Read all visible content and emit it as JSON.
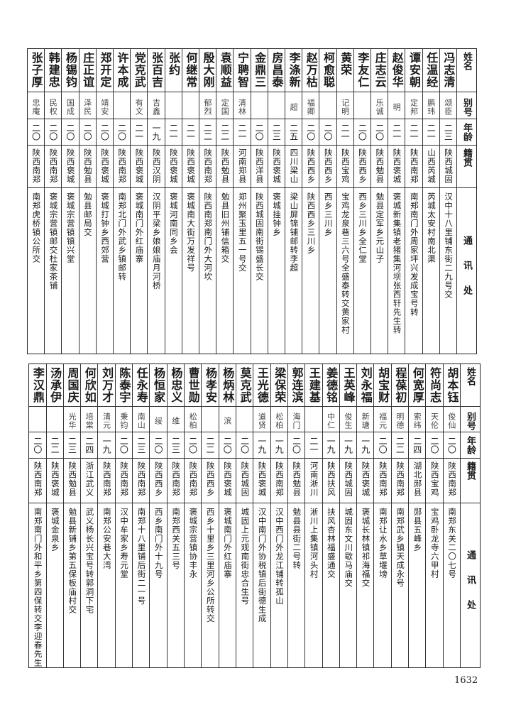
{
  "headers": {
    "name": "姓名",
    "alias": "别号",
    "age": "年龄",
    "native": "籍贯",
    "address": "通讯处"
  },
  "top_table": [
    {
      "name": "冯志清",
      "alias": "颂臣",
      "age": "二三",
      "native": "陕西城固",
      "address": "汉中十八里铺东街二九号交"
    },
    {
      "name": "任温经",
      "alias": "鹏玮",
      "age": "二一",
      "native": "山西芮城",
      "address": "芮城太安村南北渠"
    },
    {
      "name": "谭安朝",
      "alias": "定邦",
      "age": "二一",
      "native": "陕西南郑",
      "address": "南郑南门外周家坪兴发成宝号转"
    },
    {
      "name": "赵俊华",
      "alias": "明",
      "age": "二一",
      "native": "陕西褒城",
      "address": "褒城新集镇老猪集河坝张西轩先生转"
    },
    {
      "name": "庄志云",
      "alias": "乐诚",
      "age": "二〇",
      "native": "陕西勉县",
      "address": "勉县定军乡元山子"
    },
    {
      "name": "李友仁",
      "alias": "",
      "age": "二〇",
      "native": "陕西西乡",
      "address": "西乡三川乡全仁堂"
    },
    {
      "name": "黄荣",
      "alias": "记明",
      "age": "二一",
      "native": "陕西宝鸡",
      "address": "宝鸡龙泉巷三六号全盛泰转交黄家村"
    },
    {
      "name": "柯愈聪",
      "alias": "",
      "age": "二〇",
      "native": "陕西西乡",
      "address": "西乡三川乡"
    },
    {
      "name": "赵万枯",
      "alias": "福卿",
      "age": "二〇",
      "native": "陕西西乡",
      "address": "陕西西乡三川乡"
    },
    {
      "name": "李涤新",
      "alias": "超",
      "age": "二五",
      "native": "四川梁山",
      "address": "梁山屏锦铺邮转李超"
    },
    {
      "name": "房昌泰",
      "alias": "",
      "age": "二三",
      "native": "陕西褒城",
      "address": "褒城挂钟乡"
    },
    {
      "name": "金鼎三",
      "alias": "",
      "age": "二〇",
      "native": "陕西洋县",
      "address": "陕西城固南街锡盛长交"
    },
    {
      "name": "宁聘智",
      "alias": "清林",
      "age": "二一",
      "native": "河南郑县",
      "address": "郑州聚玉里五一号交"
    },
    {
      "name": "袁顺益",
      "alias": "定国",
      "age": "二二",
      "native": "陕西勉县",
      "address": "勉县旧州铺信箱交"
    },
    {
      "name": "殷大刚",
      "alias": "郁烈",
      "age": "二二",
      "native": "陕西南郑",
      "address": "陕西南郑南门外大河坎"
    },
    {
      "name": "何继常",
      "alias": "",
      "age": "二一",
      "native": "陕西褒城",
      "address": "褒城南大街万发祥号"
    },
    {
      "name": "张约",
      "alias": "",
      "age": "二一",
      "native": "陕西褒城",
      "address": "褒城河南同乡会"
    },
    {
      "name": "张百吉",
      "alias": "吉鑫",
      "age": "一九",
      "native": "陕西汉阴",
      "address": "汉阴平梁乡娘娘庙月河桥"
    },
    {
      "name": "党克武",
      "alias": "有文",
      "age": "二一",
      "native": "陕西褒城",
      "address": "褒城南门外红庙寨"
    },
    {
      "name": "许本成",
      "alias": "",
      "age": "二〇",
      "native": "陕西南郑",
      "address": "南郑北门外武乡镇邮转"
    },
    {
      "name": "郑开定",
      "alias": "靖安",
      "age": "二〇",
      "native": "陕西褒城",
      "address": "褒城打钟乡西郊营"
    },
    {
      "name": "庄正谊",
      "alias": "泽民",
      "age": "二〇",
      "native": "陕西勉县",
      "address": "勉县邮局交"
    },
    {
      "name": "杨锡钧",
      "alias": "国成",
      "age": "二〇",
      "native": "陕西褒城",
      "address": "褒城宗营镇镇兴堂"
    },
    {
      "name": "韩建忠",
      "alias": "民权",
      "age": "二〇",
      "native": "陕西南郑",
      "address": "褒城宗营镇邮交杜家茶铺"
    },
    {
      "name": "张子厚",
      "alias": "忠庵",
      "age": "二〇",
      "native": "陕西南郑",
      "address": "南郑虎桥镇公所交"
    }
  ],
  "bottom_table": [
    {
      "name": "胡本钰",
      "alias": "俊仙",
      "age": "二〇",
      "native": "陕西南郑",
      "address": "南郑东关二〇七号"
    },
    {
      "name": "符尚志",
      "alias": "天伦",
      "age": "二〇",
      "native": "陕西宝鸡",
      "address": "宝鸡卧龙寺六甲村"
    },
    {
      "name": "何宽厚",
      "alias": "索纬",
      "age": "二四",
      "native": "湖北郧县",
      "address": "郧县五峰乡"
    },
    {
      "name": "程葆初",
      "alias": "明德",
      "age": "二二",
      "native": "陕西南郑",
      "address": "南郑武乡镇天成永号"
    },
    {
      "name": "胡宝财",
      "alias": "福元",
      "age": "二〇",
      "native": "陕西南郑",
      "address": "南郑让水乡草堰塝"
    },
    {
      "name": "刘永福",
      "alias": "新瑭",
      "age": "一九",
      "native": "陕西褒城",
      "address": "褒城长林镇祁海福交"
    },
    {
      "name": "王英峰",
      "alias": "俊生",
      "age": "一九",
      "native": "陕西城固",
      "address": "城固东文川歇马庙交"
    },
    {
      "name": "姜德铭",
      "alias": "中仁",
      "age": "一九",
      "native": "陕西扶风",
      "address": "扶风杏林福盛通交"
    },
    {
      "name": "王建基",
      "alias": "",
      "age": "二一",
      "native": "河南淅川",
      "address": "淅川上集镇河头村"
    },
    {
      "name": "郭连滨",
      "alias": "海门",
      "age": "二〇",
      "native": "陕西勉县",
      "address": "勉县县街二号转"
    },
    {
      "name": "梁保荣",
      "alias": "松柏",
      "age": "一九",
      "native": "陕西南郑",
      "address": "汉中西门外龙江铺转孤山"
    },
    {
      "name": "王光德",
      "alias": "道贤",
      "age": "一九",
      "native": "陕西褒城",
      "address": "汉中南门外协税镇后街德生成"
    },
    {
      "name": "莫克武",
      "alias": "",
      "age": "二〇",
      "native": "陕西城固",
      "address": "城固上元观南街忠合生号"
    },
    {
      "name": "杨炳林",
      "alias": "滨",
      "age": "二〇",
      "native": "陕西褒城",
      "address": "褒城南门外红庙寨"
    },
    {
      "name": "杨孝安",
      "alias": "",
      "age": "二二",
      "native": "陕西西乡",
      "address": "西乡十里乡三里河乡公所转交"
    },
    {
      "name": "曹世勋",
      "alias": "松柏",
      "age": "二〇",
      "native": "陕西南郑",
      "address": "褒城宗营镇协丰永"
    },
    {
      "name": "杨忠义",
      "alias": "维",
      "age": "二三",
      "native": "陕西南郑",
      "address": "南郑西关五三号"
    },
    {
      "name": "杨恒家",
      "alias": "绥",
      "age": "二〇",
      "native": "陕西西乡",
      "address": "西乡南门外十九号"
    },
    {
      "name": "任永寿",
      "alias": "南山",
      "age": "二三",
      "native": "陕西南郑",
      "address": "南郑十八里铺后街二一号"
    },
    {
      "name": "陈泰宇",
      "alias": "秉钧",
      "age": "二〇",
      "native": "陕西南郑",
      "address": "汉中牟家乡寿元堂"
    },
    {
      "name": "刘万才",
      "alias": "清元",
      "age": "一九",
      "native": "陕西南郑",
      "address": "南郑公安巷大湾"
    },
    {
      "name": "何欣如",
      "alias": "培棠",
      "age": "二四",
      "native": "浙江武义",
      "address": "武义杨长兴宝号转郭洞下宅"
    },
    {
      "name": "周国庆",
      "alias": "光华",
      "age": "二三",
      "native": "陕西勉县",
      "address": "勉县新铺乡第五保板庙村交"
    },
    {
      "name": "汤承伊",
      "alias": "",
      "age": "二二",
      "native": "陕西褒城",
      "address": "褒城金泉乡"
    },
    {
      "name": "李汉鼎",
      "alias": "",
      "age": "二〇",
      "native": "陕西南郑",
      "address": "南郑南门外和平乡第四保转交李迎春先生"
    }
  ],
  "page_number": "1632"
}
